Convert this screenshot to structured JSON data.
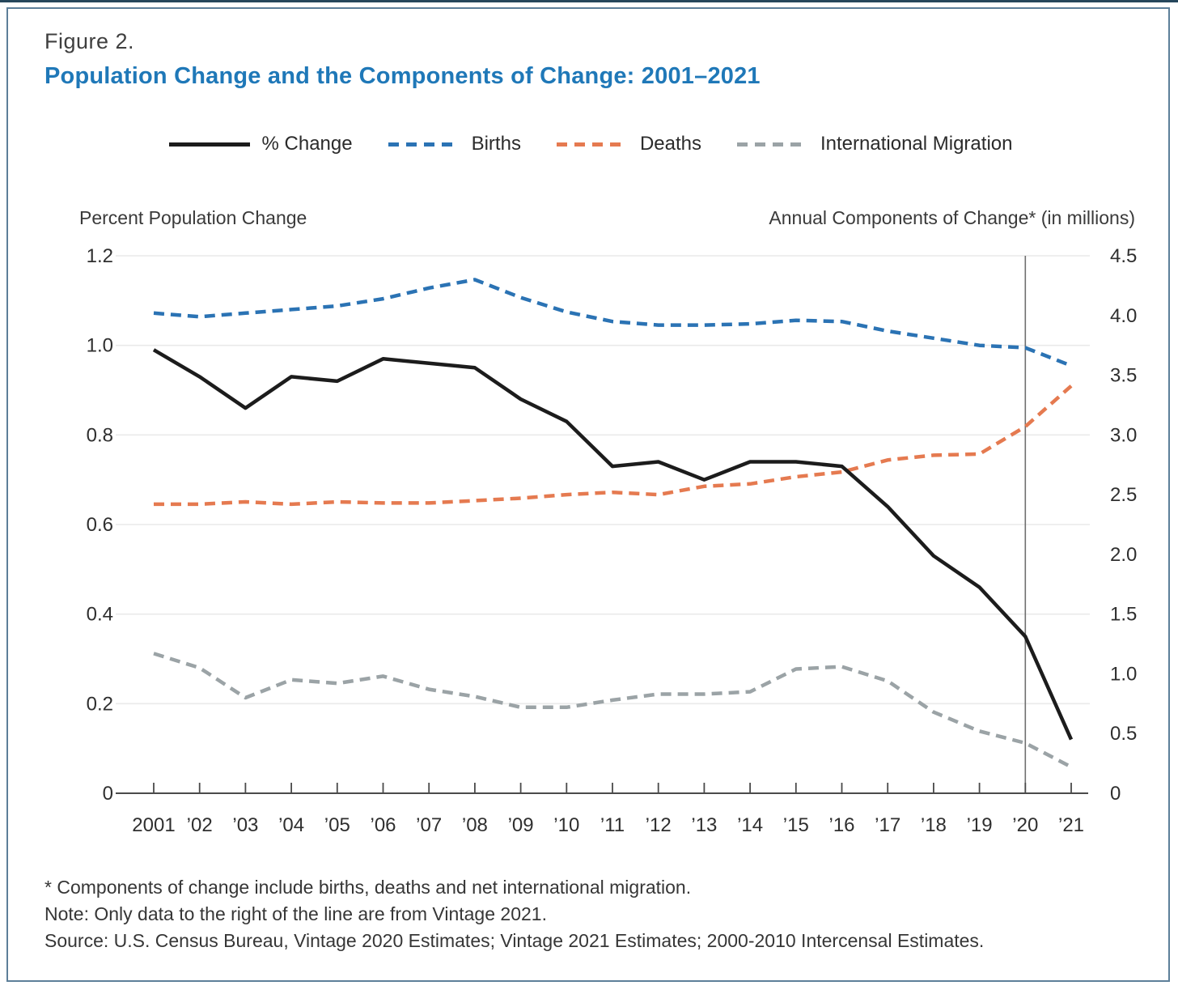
{
  "page": {
    "top_strip_color": "#26475c",
    "border_color": "#5d7f99"
  },
  "header": {
    "figure_label": "Figure 2.",
    "title": "Population Change and the Components of Change: 2001–2021",
    "title_color": "#1f78b8"
  },
  "legend": {
    "items": [
      {
        "label": "% Change",
        "color": "#1c1c1c",
        "style": "solid"
      },
      {
        "label": "Births",
        "color": "#2b73b4",
        "style": "dashed"
      },
      {
        "label": "Deaths",
        "color": "#e57a50",
        "style": "dashed"
      },
      {
        "label": "International Migration",
        "color": "#9ba3a6",
        "style": "dashed"
      }
    ]
  },
  "axes": {
    "left_title": "Percent Population Change",
    "right_title": "Annual Components of Change* (in millions)",
    "left_tick_labels": [
      "1.2",
      "1.0",
      "0.8",
      "0.6",
      "0.4",
      "0.2",
      "0"
    ],
    "right_tick_labels": [
      "4.5",
      "4.0",
      "3.5",
      "3.0",
      "2.5",
      "2.0",
      "1.5",
      "1.0",
      "0.5",
      "0"
    ]
  },
  "chart_data": {
    "type": "line",
    "title": "Population Change and the Components of Change: 2001–2021",
    "x_categories": [
      "2001",
      "’02",
      "’03",
      "’04",
      "’05",
      "’06",
      "’07",
      "’08",
      "’09",
      "’10",
      "’11",
      "’12",
      "’13",
      "’14",
      "’15",
      "’16",
      "’17",
      "’18",
      "’19",
      "’20",
      "’21"
    ],
    "left_axis": {
      "label": "Percent Population Change",
      "range": [
        0,
        1.2
      ]
    },
    "right_axis": {
      "label": "Annual Components of Change* (in millions)",
      "range": [
        0,
        4.5
      ]
    },
    "grid": "horizontal",
    "legend_position": "top",
    "reference_line": {
      "x_index": 19,
      "x_label": "’20"
    },
    "series": [
      {
        "name": "% Change",
        "axis": "left",
        "style": "solid",
        "color": "#1c1c1c",
        "values": [
          0.99,
          0.93,
          0.86,
          0.93,
          0.92,
          0.97,
          0.96,
          0.95,
          0.88,
          0.83,
          0.73,
          0.74,
          0.7,
          0.74,
          0.74,
          0.73,
          0.64,
          0.53,
          0.46,
          0.35,
          0.12
        ]
      },
      {
        "name": "Births",
        "axis": "right",
        "style": "dashed",
        "color": "#2b73b4",
        "values": [
          4.02,
          3.99,
          4.02,
          4.05,
          4.08,
          4.14,
          4.23,
          4.3,
          4.15,
          4.03,
          3.95,
          3.92,
          3.92,
          3.93,
          3.96,
          3.95,
          3.87,
          3.81,
          3.75,
          3.73,
          3.58
        ]
      },
      {
        "name": "Deaths",
        "axis": "right",
        "style": "dashed",
        "color": "#e57a50",
        "values": [
          2.42,
          2.42,
          2.44,
          2.42,
          2.44,
          2.43,
          2.43,
          2.45,
          2.47,
          2.5,
          2.52,
          2.5,
          2.57,
          2.59,
          2.65,
          2.69,
          2.79,
          2.83,
          2.84,
          3.07,
          3.41
        ]
      },
      {
        "name": "International Migration",
        "axis": "right",
        "style": "dashed",
        "color": "#9ba3a6",
        "values": [
          1.17,
          1.05,
          0.8,
          0.95,
          0.92,
          0.98,
          0.87,
          0.81,
          0.72,
          0.72,
          0.78,
          0.83,
          0.83,
          0.85,
          1.04,
          1.06,
          0.94,
          0.68,
          0.52,
          0.42,
          0.22
        ]
      }
    ]
  },
  "footnotes": {
    "asterisk": "* Components of change include births, deaths and net international migration.",
    "note": "Note: Only data to the right of the line are from Vintage 2021.",
    "source": "Source: U.S. Census Bureau, Vintage 2020 Estimates; Vintage 2021 Estimates; 2000-2010 Intercensal Estimates."
  }
}
